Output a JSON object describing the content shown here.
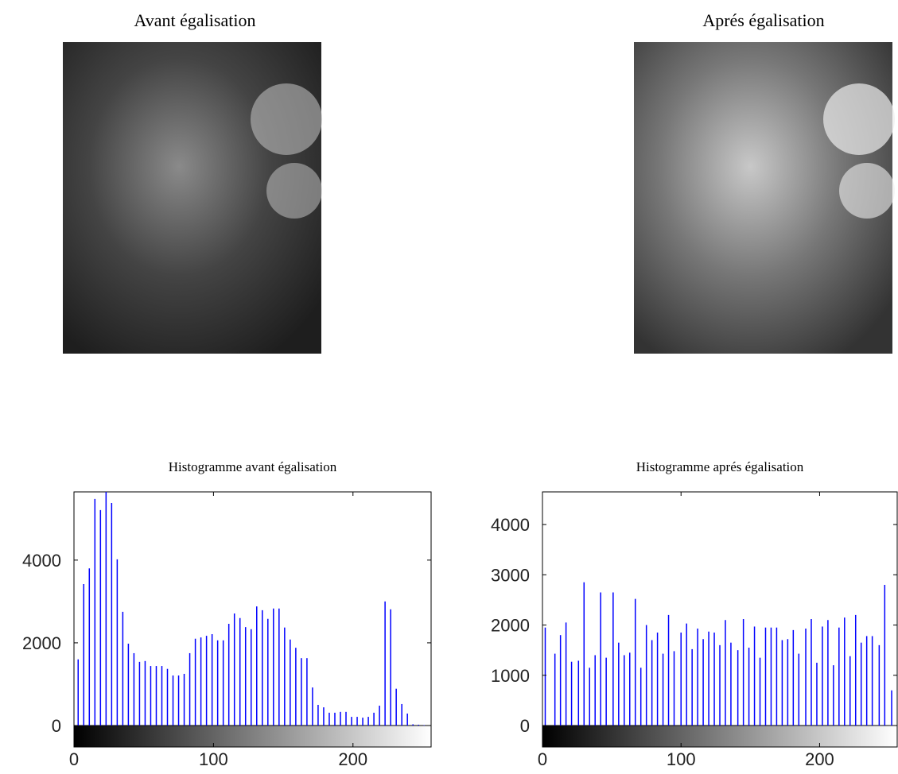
{
  "images": [
    {
      "title": "Avant égalisation"
    },
    {
      "title": "Aprés égalisation"
    }
  ],
  "chart_data": [
    {
      "type": "stem",
      "title": "Histogramme avant égalisation",
      "color": "#0000ff",
      "x": [
        3,
        7,
        11,
        15,
        19,
        23,
        27,
        31,
        35,
        39,
        43,
        47,
        51,
        55,
        59,
        63,
        67,
        71,
        75,
        79,
        83,
        87,
        91,
        95,
        99,
        103,
        107,
        111,
        115,
        119,
        123,
        127,
        131,
        135,
        139,
        143,
        147,
        151,
        155,
        159,
        163,
        167,
        171,
        175,
        179,
        183,
        187,
        191,
        195,
        199,
        203,
        207,
        211,
        215,
        219,
        223,
        227,
        231,
        235,
        239,
        243,
        247,
        251,
        255
      ],
      "values": [
        1600,
        3420,
        3800,
        5480,
        5210,
        5650,
        5380,
        4020,
        2750,
        1980,
        1750,
        1540,
        1560,
        1440,
        1440,
        1440,
        1370,
        1210,
        1210,
        1250,
        1750,
        2100,
        2130,
        2170,
        2210,
        2060,
        2060,
        2460,
        2710,
        2600,
        2380,
        2330,
        2880,
        2790,
        2580,
        2830,
        2830,
        2370,
        2080,
        1880,
        1630,
        1630,
        920,
        500,
        440,
        310,
        310,
        330,
        330,
        210,
        210,
        190,
        210,
        310,
        480,
        3000,
        2810,
        890,
        520,
        290,
        30,
        20,
        10,
        10
      ],
      "xlim": [
        0,
        256
      ],
      "ylim": [
        0,
        5650
      ],
      "xticks": [
        0,
        100,
        200
      ],
      "yticks": [
        0,
        2000,
        4000
      ]
    },
    {
      "type": "stem",
      "title": "Histogramme aprés égalisation",
      "color": "#0000ff",
      "x": [
        2,
        9,
        13,
        17,
        21,
        26,
        30,
        34,
        38,
        42,
        46,
        51,
        55,
        59,
        63,
        67,
        71,
        75,
        79,
        83,
        87,
        91,
        95,
        100,
        104,
        108,
        112,
        116,
        120,
        124,
        128,
        132,
        136,
        141,
        145,
        149,
        153,
        157,
        161,
        165,
        169,
        173,
        177,
        181,
        185,
        190,
        194,
        198,
        202,
        206,
        210,
        214,
        218,
        222,
        226,
        230,
        234,
        238,
        243,
        247,
        252
      ],
      "values": [
        1950,
        1430,
        1800,
        2050,
        1270,
        1290,
        2850,
        1150,
        1400,
        2650,
        1350,
        2650,
        1650,
        1400,
        1450,
        2520,
        1150,
        2000,
        1700,
        1850,
        1430,
        2200,
        1480,
        1850,
        2030,
        1520,
        1930,
        1720,
        1870,
        1850,
        1600,
        2100,
        1650,
        1500,
        2120,
        1550,
        1970,
        1350,
        1950,
        1950,
        1950,
        1700,
        1720,
        1900,
        1430,
        1930,
        2120,
        1250,
        1970,
        2100,
        1200,
        1950,
        2150,
        1380,
        2200,
        1650,
        1780,
        1780,
        1600,
        2800,
        700
      ],
      "xlim": [
        0,
        256
      ],
      "ylim": [
        0,
        4650
      ],
      "xticks": [
        0,
        100,
        200
      ],
      "yticks": [
        0,
        1000,
        2000,
        3000,
        4000
      ]
    }
  ]
}
